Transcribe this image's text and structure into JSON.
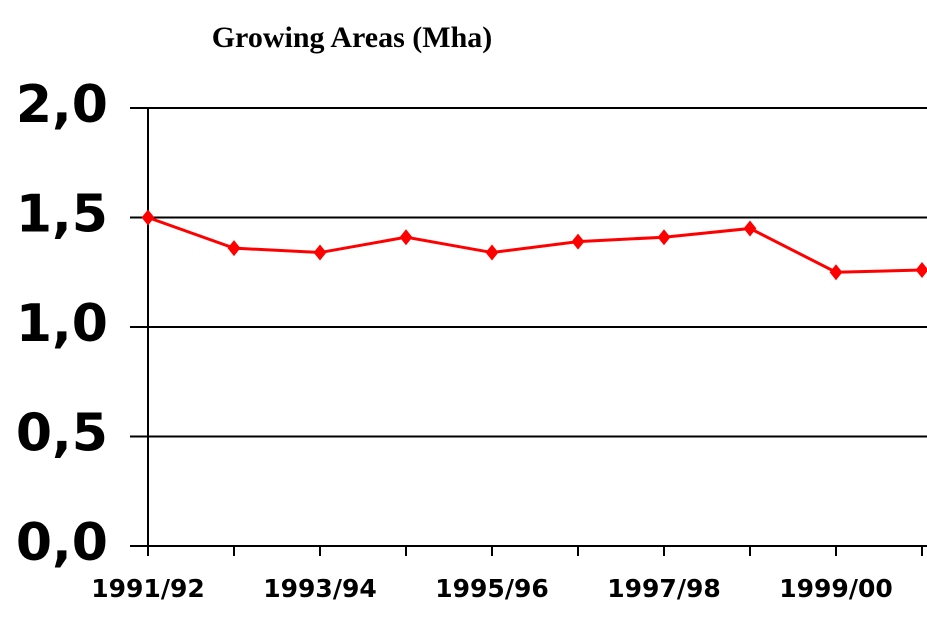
{
  "chart_data": {
    "type": "line",
    "title": "Growing  Areas (Mha)",
    "categories": [
      "1991/92",
      null,
      "1993/94",
      null,
      "1995/96",
      null,
      "1997/98",
      null,
      "1999/00",
      null
    ],
    "series": [
      {
        "name": "Growing Areas",
        "color": "#ff0000",
        "values": [
          1.5,
          1.36,
          1.34,
          1.41,
          1.34,
          1.39,
          1.41,
          1.45,
          1.25,
          1.26
        ]
      }
    ],
    "ylim": [
      0,
      2
    ],
    "yticks": [
      {
        "value": 0,
        "label": "0,0"
      },
      {
        "value": 0.5,
        "label": "0,5"
      },
      {
        "value": 1,
        "label": "1,0"
      },
      {
        "value": 1.5,
        "label": "1,5"
      },
      {
        "value": 2,
        "label": "2,0"
      }
    ],
    "grid": true
  }
}
